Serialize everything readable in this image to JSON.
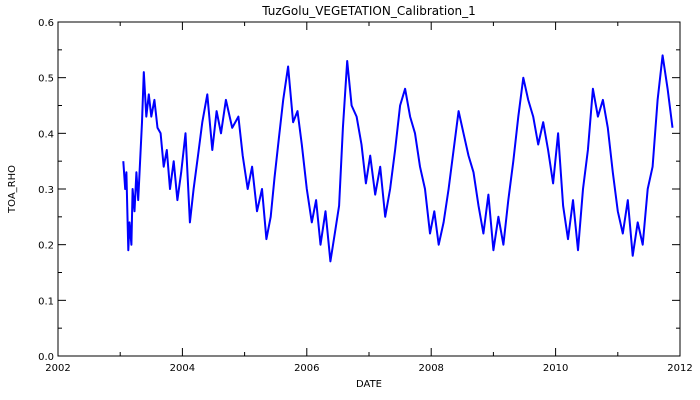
{
  "chart_data": {
    "type": "line",
    "title": "TuzGolu_VEGETATION_Calibration_1",
    "xlabel": "DATE",
    "ylabel": "TOA_RHO",
    "xlim": [
      2002,
      2012
    ],
    "ylim": [
      0.0,
      0.6
    ],
    "x_ticks": [
      "2002",
      "2004",
      "2006",
      "2008",
      "2010",
      "2012"
    ],
    "y_ticks": [
      "0.0",
      "0.1",
      "0.2",
      "0.3",
      "0.4",
      "0.5",
      "0.6"
    ],
    "grid": false,
    "line_color": "#0000ff",
    "series": [
      {
        "x": [
          2003.05,
          2003.08,
          2003.1,
          2003.13,
          2003.15,
          2003.18,
          2003.2,
          2003.23,
          2003.26,
          2003.29,
          2003.32,
          2003.35,
          2003.38,
          2003.42,
          2003.46,
          2003.5,
          2003.55,
          2003.6,
          2003.65,
          2003.7,
          2003.75,
          2003.8,
          2003.86,
          2003.92,
          2003.98,
          2004.05,
          2004.12,
          2004.18,
          2004.25,
          2004.32,
          2004.4,
          2004.48,
          2004.55,
          2004.62,
          2004.7,
          2004.8,
          2004.9,
          2004.97,
          2005.05,
          2005.12,
          2005.2,
          2005.28,
          2005.35,
          2005.42,
          2005.48,
          2005.55,
          2005.62,
          2005.7,
          2005.78,
          2005.85,
          2005.92,
          2006.0,
          2006.08,
          2006.15,
          2006.22,
          2006.3,
          2006.38,
          2006.45,
          2006.52,
          2006.58,
          2006.65,
          2006.72,
          2006.8,
          2006.88,
          2006.95,
          2007.02,
          2007.1,
          2007.18,
          2007.26,
          2007.34,
          2007.42,
          2007.5,
          2007.58,
          2007.66,
          2007.74,
          2007.82,
          2007.9,
          2007.98,
          2008.05,
          2008.12,
          2008.2,
          2008.28,
          2008.36,
          2008.44,
          2008.52,
          2008.6,
          2008.68,
          2008.76,
          2008.84,
          2008.92,
          2009.0,
          2009.08,
          2009.16,
          2009.24,
          2009.32,
          2009.4,
          2009.48,
          2009.56,
          2009.64,
          2009.72,
          2009.8,
          2009.88,
          2009.96,
          2010.04,
          2010.12,
          2010.2,
          2010.28,
          2010.36,
          2010.44,
          2010.52,
          2010.6,
          2010.68,
          2010.76,
          2010.84,
          2010.92,
          2011.0,
          2011.08,
          2011.16,
          2011.24,
          2011.32,
          2011.4,
          2011.48,
          2011.56,
          2011.64,
          2011.72,
          2011.8,
          2011.88
        ],
        "y": [
          0.35,
          0.3,
          0.33,
          0.19,
          0.24,
          0.2,
          0.3,
          0.26,
          0.33,
          0.28,
          0.35,
          0.42,
          0.51,
          0.43,
          0.47,
          0.43,
          0.46,
          0.41,
          0.4,
          0.34,
          0.37,
          0.3,
          0.35,
          0.28,
          0.33,
          0.4,
          0.24,
          0.3,
          0.36,
          0.42,
          0.47,
          0.37,
          0.44,
          0.4,
          0.46,
          0.41,
          0.43,
          0.36,
          0.3,
          0.34,
          0.26,
          0.3,
          0.21,
          0.25,
          0.32,
          0.39,
          0.46,
          0.52,
          0.42,
          0.44,
          0.38,
          0.3,
          0.24,
          0.28,
          0.2,
          0.26,
          0.17,
          0.22,
          0.27,
          0.41,
          0.53,
          0.45,
          0.43,
          0.38,
          0.31,
          0.36,
          0.29,
          0.34,
          0.25,
          0.3,
          0.37,
          0.45,
          0.48,
          0.43,
          0.4,
          0.34,
          0.3,
          0.22,
          0.26,
          0.2,
          0.24,
          0.3,
          0.37,
          0.44,
          0.4,
          0.36,
          0.33,
          0.27,
          0.22,
          0.29,
          0.19,
          0.25,
          0.2,
          0.28,
          0.35,
          0.43,
          0.5,
          0.46,
          0.43,
          0.38,
          0.42,
          0.37,
          0.31,
          0.4,
          0.27,
          0.21,
          0.28,
          0.19,
          0.3,
          0.37,
          0.48,
          0.43,
          0.46,
          0.41,
          0.33,
          0.26,
          0.22,
          0.28,
          0.18,
          0.24,
          0.2,
          0.3,
          0.34,
          0.46,
          0.54,
          0.48,
          0.41
        ]
      }
    ]
  }
}
